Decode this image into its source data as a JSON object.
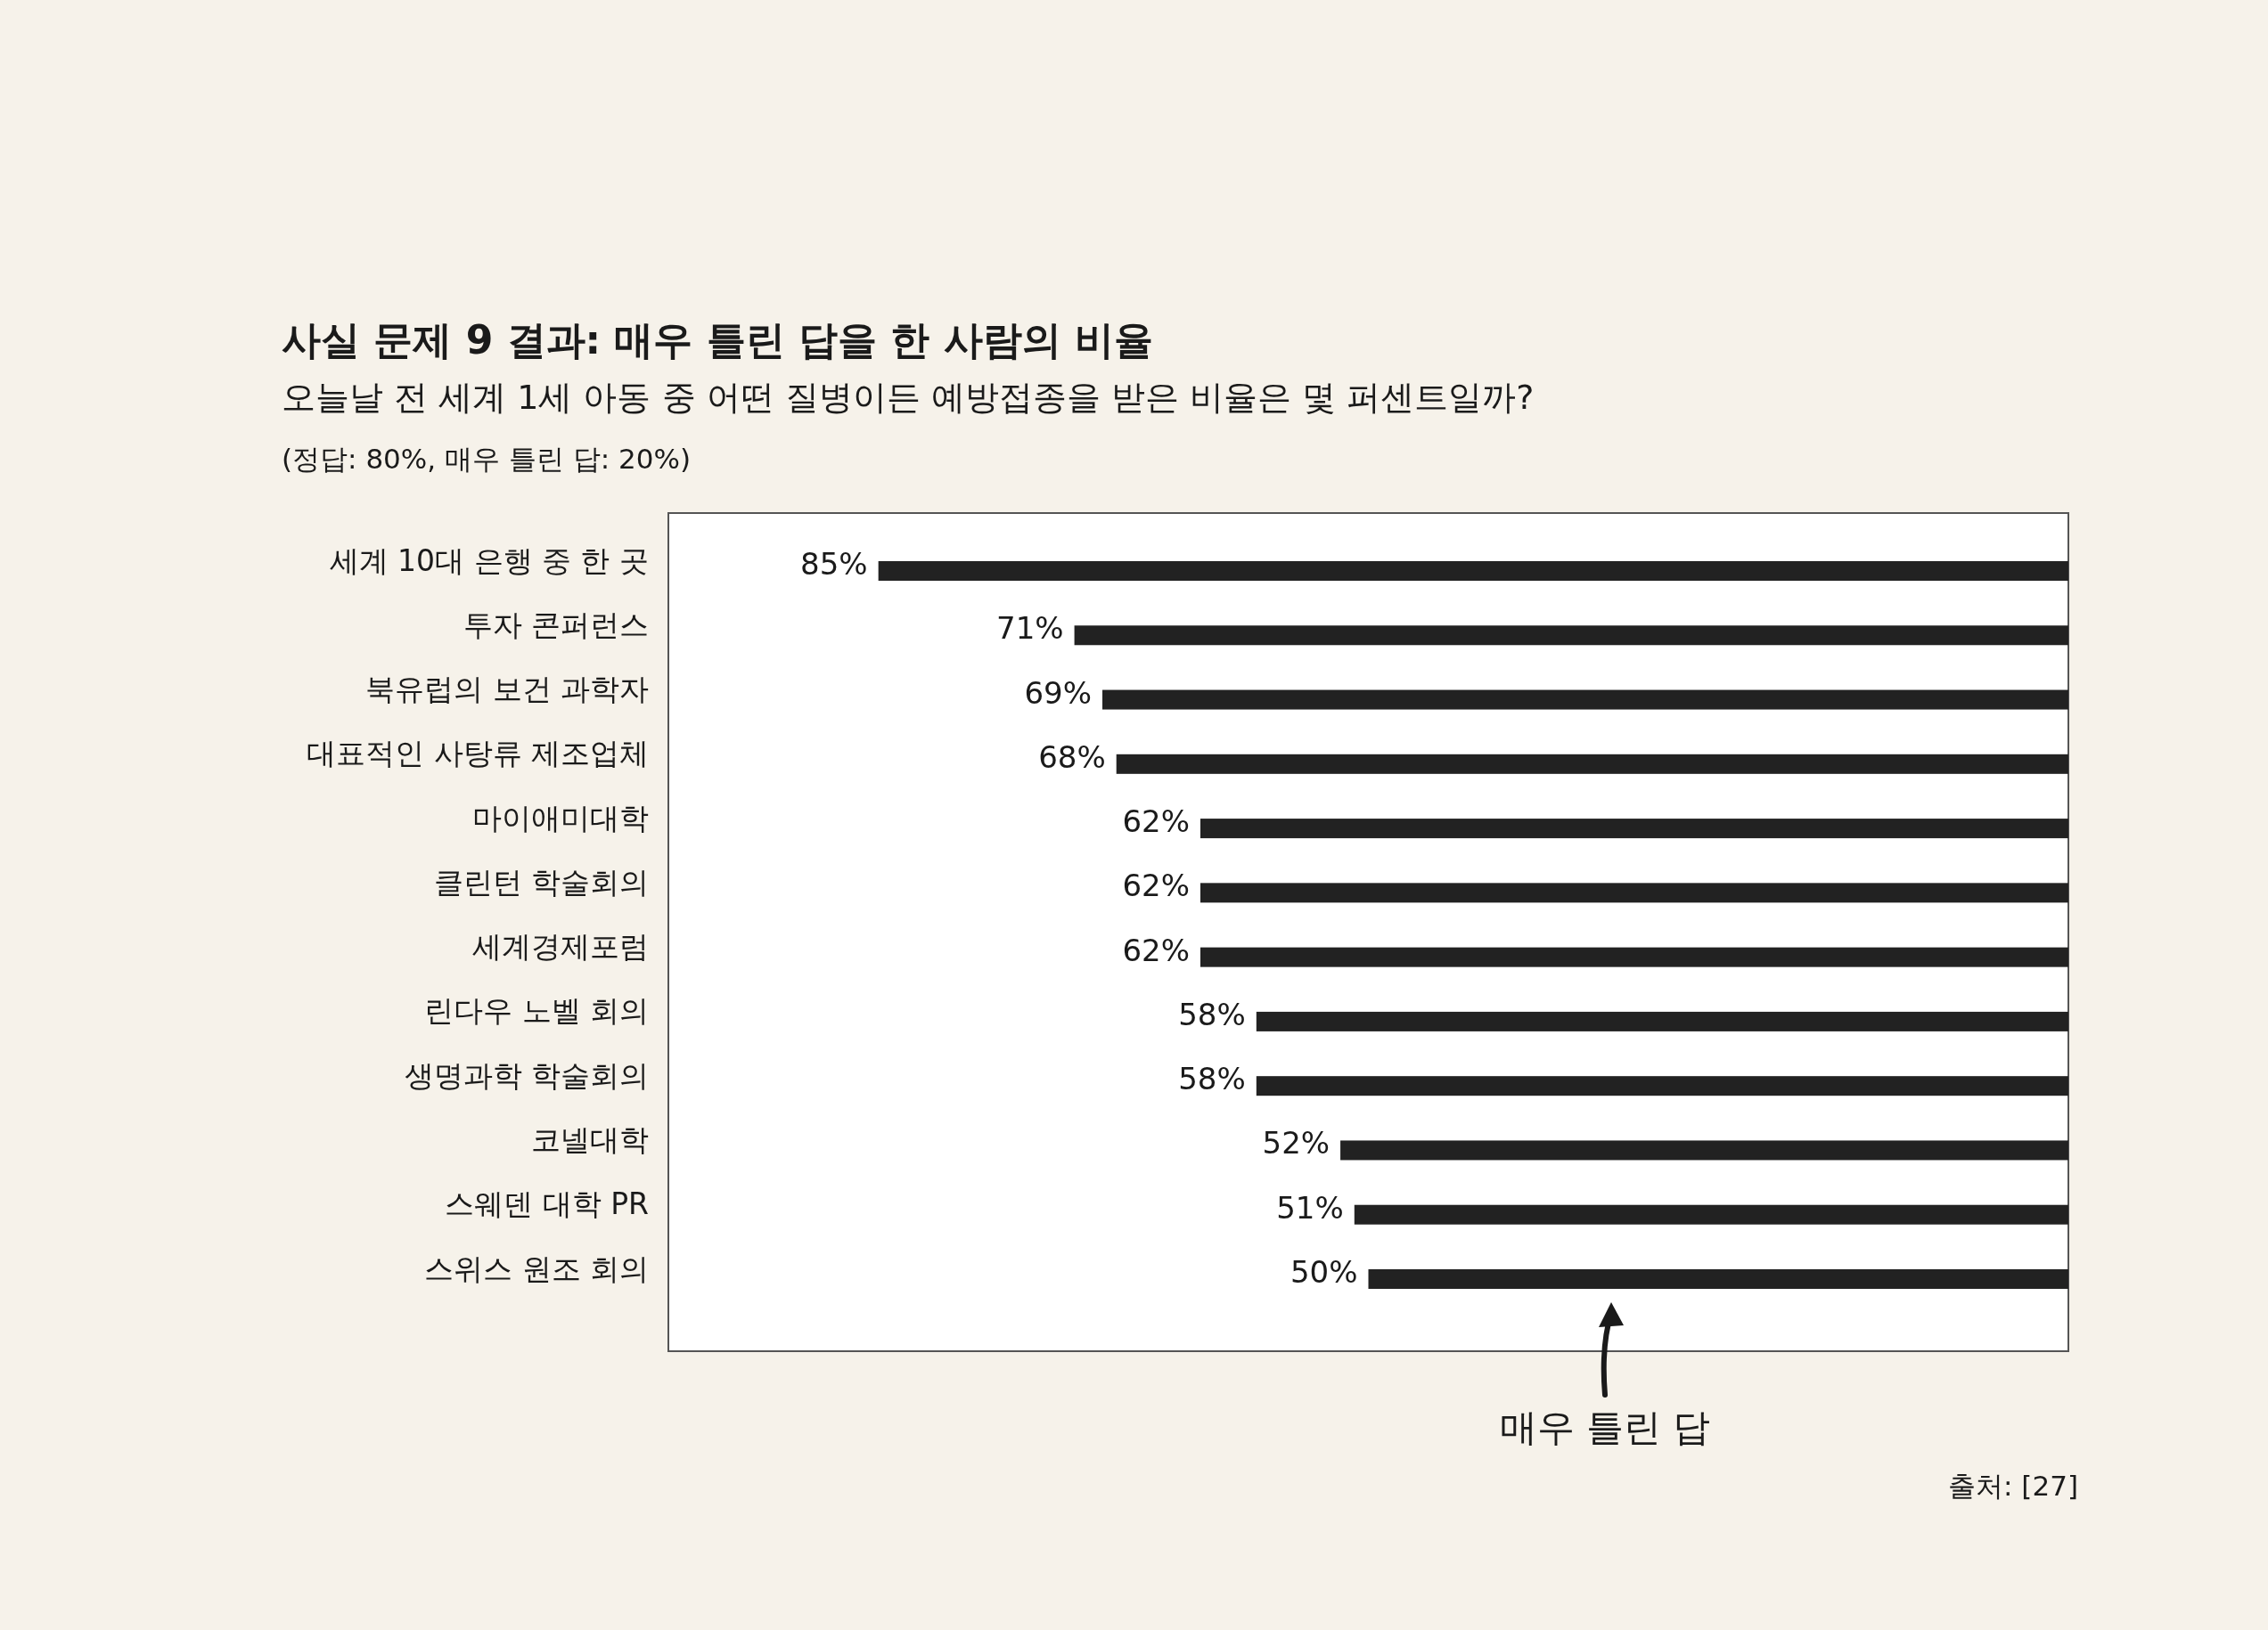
{
  "chart_data": {
    "type": "bar",
    "orientation": "horizontal",
    "title": "사실 문제 9 결과: 매우 틀린 답을 한 사람의 비율",
    "subtitle": "오늘날 전 세계 1세 아동 중 어떤 질병이든 예방접종을 받은 비율은 몇 퍼센트일까?",
    "categories": [
      "세계 10대 은행 중 한 곳",
      "투자 콘퍼런스",
      "북유럽의 보건 과학자",
      "대표적인 사탕류 제조업체",
      "마이애미대학",
      "클린턴 학술회의",
      "세계경제포럼",
      "린다우 노벨 회의",
      "생명과학 학술회의",
      "코넬대학",
      "스웨덴 대학 PR",
      "스위스 원조 회의"
    ],
    "values": [
      85,
      71,
      69,
      68,
      62,
      62,
      62,
      58,
      58,
      52,
      51,
      50
    ],
    "value_labels": [
      "85%",
      "71%",
      "69%",
      "68%",
      "62%",
      "62%",
      "62%",
      "58%",
      "58%",
      "52%",
      "51%",
      "50%"
    ],
    "color": "#222222",
    "xlim": [
      100,
      0
    ],
    "annotations": [
      "(정답: 80%, 매우 틀린 답: 20%)",
      "매우 틀린 답",
      "출처: [27]"
    ]
  }
}
